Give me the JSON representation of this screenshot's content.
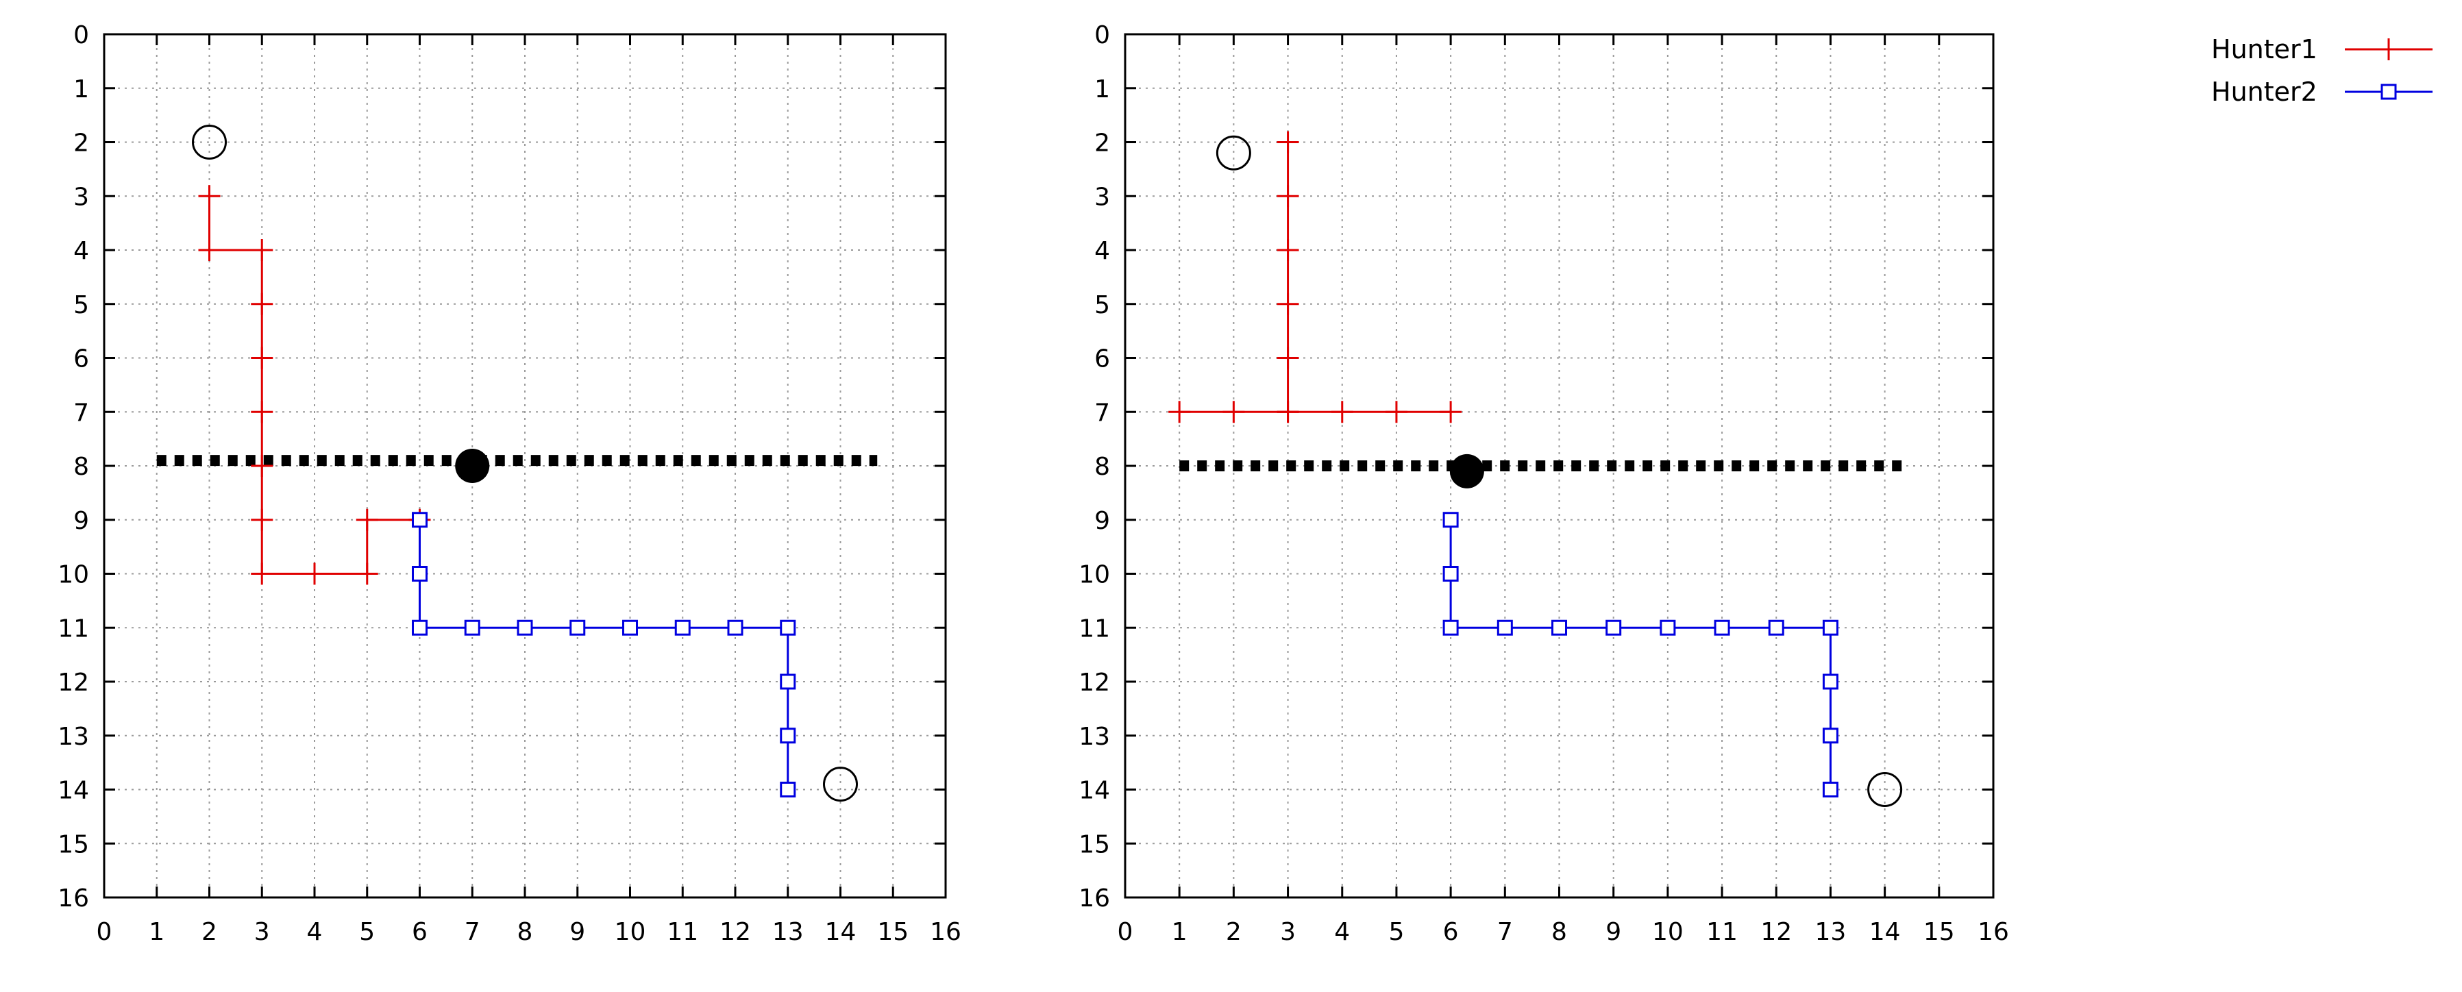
{
  "chart_data": [
    {
      "type": "line",
      "title": "",
      "xlabel": "",
      "ylabel": "",
      "xlim": [
        0,
        16
      ],
      "ylim": [
        0,
        16
      ],
      "y_inverted": true,
      "grid": true,
      "x_ticks": [
        "0",
        "1",
        "2",
        "3",
        "4",
        "5",
        "6",
        "7",
        "8",
        "9",
        "10",
        "11",
        "12",
        "13",
        "14",
        "15",
        "16"
      ],
      "y_ticks": [
        "0",
        "1",
        "2",
        "3",
        "4",
        "5",
        "6",
        "7",
        "8",
        "9",
        "10",
        "11",
        "12",
        "13",
        "14",
        "15",
        "16"
      ],
      "series": [
        {
          "name": "Hunter1",
          "color": "#e00000",
          "marker": "plus",
          "segments": [
            [
              [
                2,
                3
              ],
              [
                2,
                4
              ],
              [
                3,
                4
              ],
              [
                3,
                5
              ],
              [
                3,
                6
              ],
              [
                3,
                7
              ],
              [
                3,
                8
              ],
              [
                3,
                9
              ],
              [
                3,
                10
              ],
              [
                4,
                10
              ],
              [
                5,
                10
              ],
              [
                5,
                9
              ],
              [
                6,
                9
              ]
            ]
          ]
        },
        {
          "name": "Hunter2",
          "color": "#0000e0",
          "marker": "square",
          "segments": [
            [
              [
                6,
                9
              ],
              [
                6,
                10
              ],
              [
                6,
                11
              ],
              [
                7,
                11
              ],
              [
                8,
                11
              ],
              [
                9,
                11
              ],
              [
                10,
                11
              ],
              [
                11,
                11
              ],
              [
                12,
                11
              ],
              [
                13,
                11
              ],
              [
                13,
                12
              ],
              [
                13,
                13
              ],
              [
                13,
                14
              ]
            ]
          ]
        }
      ],
      "barrier": {
        "x_from": 1,
        "x_to": 14.7,
        "y": 7.9,
        "color": "#000000"
      },
      "target": {
        "x": 7,
        "y": 8
      },
      "start_circles": [
        {
          "x": 2,
          "y": 2
        },
        {
          "x": 14,
          "y": 13.9
        }
      ]
    },
    {
      "type": "line",
      "title": "",
      "xlabel": "",
      "ylabel": "",
      "xlim": [
        0,
        16
      ],
      "ylim": [
        0,
        16
      ],
      "y_inverted": true,
      "grid": true,
      "x_ticks": [
        "0",
        "1",
        "2",
        "3",
        "4",
        "5",
        "6",
        "7",
        "8",
        "9",
        "10",
        "11",
        "12",
        "13",
        "14",
        "15",
        "16"
      ],
      "y_ticks": [
        "0",
        "1",
        "2",
        "3",
        "4",
        "5",
        "6",
        "7",
        "8",
        "9",
        "10",
        "11",
        "12",
        "13",
        "14",
        "15",
        "16"
      ],
      "series": [
        {
          "name": "Hunter1",
          "color": "#e00000",
          "marker": "plus",
          "segments": [
            [
              [
                3,
                2
              ],
              [
                3,
                3
              ],
              [
                3,
                4
              ],
              [
                3,
                5
              ],
              [
                3,
                6
              ],
              [
                3,
                7
              ]
            ],
            [
              [
                1,
                7
              ],
              [
                2,
                7
              ],
              [
                3,
                7
              ],
              [
                4,
                7
              ],
              [
                5,
                7
              ],
              [
                6,
                7
              ]
            ]
          ]
        },
        {
          "name": "Hunter2",
          "color": "#0000e0",
          "marker": "square",
          "segments": [
            [
              [
                6,
                9
              ],
              [
                6,
                10
              ],
              [
                6,
                11
              ],
              [
                7,
                11
              ],
              [
                8,
                11
              ],
              [
                9,
                11
              ],
              [
                10,
                11
              ],
              [
                11,
                11
              ],
              [
                12,
                11
              ],
              [
                13,
                11
              ],
              [
                13,
                12
              ],
              [
                13,
                13
              ],
              [
                13,
                14
              ]
            ]
          ]
        }
      ],
      "barrier": {
        "x_from": 1,
        "x_to": 14.4,
        "y": 8,
        "color": "#000000"
      },
      "target": {
        "x": 6.3,
        "y": 8.1
      },
      "start_circles": [
        {
          "x": 2,
          "y": 2.2
        },
        {
          "x": 14,
          "y": 14
        }
      ]
    }
  ],
  "legend": {
    "placement": "top-right",
    "items": [
      {
        "name": "Hunter1",
        "color": "#e00000",
        "marker": "plus"
      },
      {
        "name": "Hunter2",
        "color": "#0000e0",
        "marker": "square"
      }
    ]
  }
}
